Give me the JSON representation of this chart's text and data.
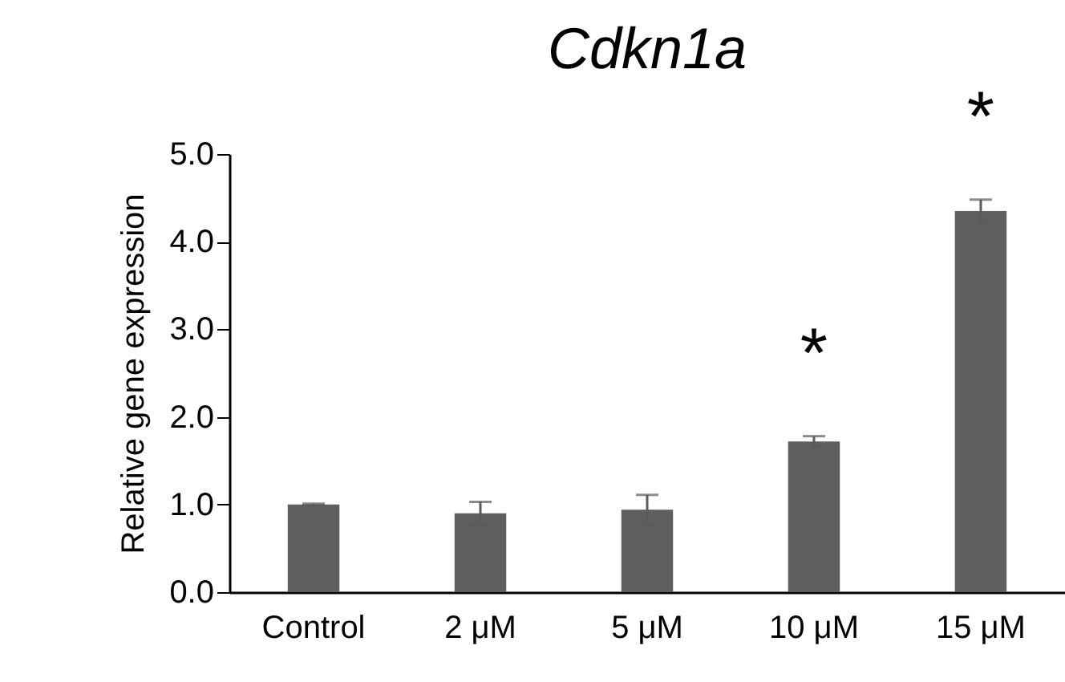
{
  "chart_data": {
    "type": "bar",
    "title": "Cdkn1a",
    "ylabel": "Relative gene expression",
    "categories": [
      "Control",
      "2 μM",
      "5 μM",
      "10 μM",
      "15 μM"
    ],
    "values": [
      1.0,
      0.9,
      0.94,
      1.72,
      4.35
    ],
    "errors": [
      0.01,
      0.13,
      0.17,
      0.06,
      0.13
    ],
    "color": "#5f5f5f",
    "ylim": [
      0,
      5
    ],
    "yticks": [
      {
        "value": 0,
        "label": "0.0"
      },
      {
        "value": 1,
        "label": "1.0"
      },
      {
        "value": 2,
        "label": "2.0"
      },
      {
        "value": 3,
        "label": "3.0"
      },
      {
        "value": 4,
        "label": "4.0"
      },
      {
        "value": 5,
        "label": "5.0"
      }
    ],
    "annotations": [
      "*",
      "*"
    ],
    "grid": false
  }
}
